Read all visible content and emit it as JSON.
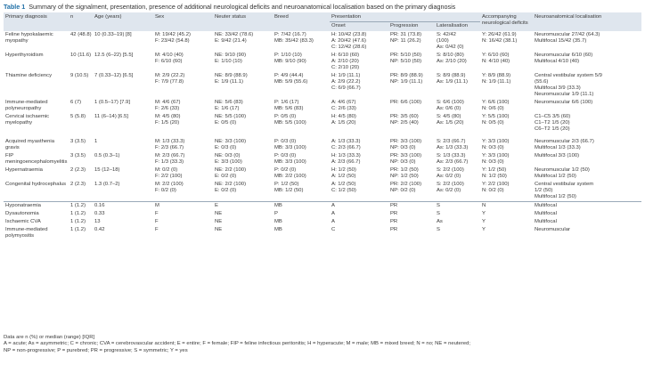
{
  "caption": {
    "label": "Table 1",
    "title": "Summary of the signalment, presentation, presence of additional neurological deficits and neuroanatomical localisation based on the primary diagnosis"
  },
  "headers": [
    "Primary diagnosis",
    "n",
    "Age (years)",
    "Sex",
    "Neuter status",
    "Breed",
    "Presentation",
    "Accompanying neurological deficits",
    "Neuroanatomical localisation"
  ],
  "subheaders": [
    "Onset",
    "Progression",
    "Lateralisation"
  ],
  "rows": [
    {
      "cells": [
        [
          "Feline hypokalaemic",
          "myopathy"
        ],
        [
          "42 (48.8)"
        ],
        [
          "10 (0.33–19) [8]"
        ],
        [
          "M: 19/42 (45.2)",
          "F: 23/42 (54.8)"
        ],
        [
          "NE: 33/42 (78.6)",
          "E: 9/42 (21.4)"
        ],
        [
          "P: 7/42 (16.7)",
          "MB: 35/42 (83.3)"
        ],
        [
          "H: 10/42 (23.8)",
          "A: 20/42 (47.6)",
          "C: 12/42 (28.6)"
        ],
        [
          "PR: 31 (73.8)",
          "NP: 11 (26.2)"
        ],
        [
          "S: 42/42",
          "(100)",
          "As: 0/42 (0)"
        ],
        [
          "Y: 26/42 (61.9)",
          "N: 16/42 (38.1)"
        ],
        [
          "Neuromuscular 27/42 (64.3)",
          "Multifocal 15/42 (35.7)"
        ]
      ]
    },
    {
      "cells": [
        [
          "Hyperthyroidism"
        ],
        [
          "10 (11.6)"
        ],
        [
          "12.5 (6–22) [5.5]"
        ],
        [
          "M: 4/10 (40)",
          "F: 6/10 (60)"
        ],
        [
          "NE: 9/10 (90)",
          "E: 1/10 (10)"
        ],
        [
          "P: 1/10 (10)",
          "MB: 9/10 (90)"
        ],
        [
          "H: 6/10 (60)",
          "A: 2/10 (20)",
          "C: 2/10 (20)"
        ],
        [
          "PR: 5/10 (50)",
          "NP: 5/10 (50)"
        ],
        [
          "S: 8/10 (80)",
          "As: 2/10 (20)"
        ],
        [
          "Y: 6/10 (60)",
          "N: 4/10 (40)"
        ],
        [
          "Neuromuscular 6/10 (60)",
          "Multifocal 4/10 (40)"
        ]
      ]
    },
    {
      "cells": [
        [
          "Thiamine deficiency"
        ],
        [
          "9 (10.5)"
        ],
        [
          "7 (0.33–12) [6.5]"
        ],
        [
          "M: 2/9 (22.2)",
          "F: 7/9 (77.8)"
        ],
        [
          "NE: 8/9 (88.9)",
          "E: 1/9 (11.1)"
        ],
        [
          "P: 4/9 (44.4)",
          "MB: 5/9 (55.6)"
        ],
        [
          "H: 1/9 (11.1)",
          "A: 2/9 (22.2)",
          "C: 6/9 (66.7)"
        ],
        [
          "PR: 8/9 (88.9)",
          "NP: 1/9 (11.1)"
        ],
        [
          "S: 8/9 (88.9)",
          "As: 1/9 (11.1)"
        ],
        [
          "Y: 8/9 (88.9)",
          "N: 1/9 (11.1)"
        ],
        [
          "Central vestibular system 5/9",
          "(55.6)",
          "Multifocal 3/9 (33.3)",
          "Neuromuscular 1/9 (11.1)"
        ]
      ]
    },
    {
      "cells": [
        [
          "Immune-mediated",
          "polyneuropathy"
        ],
        [
          "6 (7)"
        ],
        [
          "1 (0.5–17) [7.9]"
        ],
        [
          "M: 4/6 (67)",
          "F: 2/6 (33)"
        ],
        [
          "NE: 5/6 (83)",
          "E: 1/6 (17)"
        ],
        [
          "P: 1/6 (17)",
          "MB: 5/6 (83)"
        ],
        [
          "A: 4/6 (67)",
          "C: 2/6 (33)"
        ],
        [
          "PR: 6/6 (100)"
        ],
        [
          "S: 6/6 (100)",
          "As: 0/6 (0)"
        ],
        [
          "Y: 6/6 (100)",
          "N: 0/6 (0)"
        ],
        [
          "Neuromuscular 6/6 (100)"
        ]
      ]
    },
    {
      "cells": [
        [
          "Cervical ischaemic",
          "myelopathy"
        ],
        [
          "5 (5.8)"
        ],
        [
          "11 (6–14) [6.5]"
        ],
        [
          "M: 4/5 (80)",
          "F: 1/5 (20)"
        ],
        [
          "NE: 5/5 (100)",
          "E: 0/5 (0)"
        ],
        [
          "P: 0/5 (0)",
          "MB: 5/5 (100)"
        ],
        [
          "H: 4/5 (80)",
          "A: 1/5 (20)"
        ],
        [
          "PR: 3/5 (60)",
          "NP: 2/5 (40)"
        ],
        [
          "S: 4/5 (80)",
          "As: 1/5 (20)"
        ],
        [
          "Y: 5/5 (100)",
          "N: 0/5 (0)"
        ],
        [
          "C1–C5 3/5 (60)",
          "C1–T2 1/5 (20)",
          "C6–T2 1/5 (20)"
        ]
      ]
    },
    {
      "cls": "gap",
      "cells": [
        [
          "Acquired myasthenia",
          "gravis"
        ],
        [
          "3 (3.5)"
        ],
        [
          "1"
        ],
        [
          "M: 1/3 (33.3)",
          "F: 2/3 (66.7)"
        ],
        [
          "NE: 3/3 (100)",
          "E: 0/3 (0)"
        ],
        [
          "P: 0/3 (0)",
          "MB: 3/3 (100)"
        ],
        [
          "A: 1/3 (33.3)",
          "C: 2/3 (66.7)"
        ],
        [
          "PR: 3/3 (100)",
          "NP: 0/3 (0)"
        ],
        [
          "S: 2/3 (66.7)",
          "As: 1/3 (33.3)"
        ],
        [
          "Y: 3/3 (100)",
          "N: 0/3 (0)"
        ],
        [
          "Neuromuscular 2/3 (66.7)",
          "Multifocal 1/3 (33.3)"
        ]
      ]
    },
    {
      "cells": [
        [
          "FIP",
          "meningoencephalomyelitis"
        ],
        [
          "3 (3.5)"
        ],
        [
          "0.5 (0.3–1)"
        ],
        [
          "M: 2/3 (66.7)",
          "F: 1/3 (33.3)"
        ],
        [
          "NE: 0/3 (0)",
          "E: 3/3 (100)"
        ],
        [
          "P: 0/3 (0)",
          "MB: 3/3 (100)"
        ],
        [
          "H: 1/3 (33.3)",
          "A: 2/3 (66.7)"
        ],
        [
          "PR: 3/3 (100)",
          "NP: 0/3 (0)"
        ],
        [
          "S: 1/3 (33.3)",
          "As: 2/3 (66.7)"
        ],
        [
          "Y: 3/3 (100)",
          "N: 0/3 (0)"
        ],
        [
          "Multifocal 3/3 (100)"
        ]
      ]
    },
    {
      "cells": [
        [
          "Hypernatraemia"
        ],
        [
          "2 (2.3)"
        ],
        [
          "15 (12–18)"
        ],
        [
          "M: 0/2 (0)",
          "F: 2/2 (100)"
        ],
        [
          "NE: 2/2 (100)",
          "E: 0/2 (0)"
        ],
        [
          "P: 0/2 (0)",
          "MB: 2/2 (100)"
        ],
        [
          "H: 1/2 (50)",
          "A: 1/2 (50)"
        ],
        [
          "PR: 1/2 (50)",
          "NP: 1/2 (50)"
        ],
        [
          "S: 2/2 (100)",
          "As: 0/2 (0)"
        ],
        [
          "Y: 1/2 (50)",
          "N: 1/2 (50)"
        ],
        [
          "Neuromuscular 1/2 (50)",
          "Multifocal 1/2 (50)"
        ]
      ]
    },
    {
      "cells": [
        [
          "Congenital hydrocephalus"
        ],
        [
          "2 (2.3)"
        ],
        [
          "1.3 (0.7–2)"
        ],
        [
          "M: 2/2 (100)",
          "F: 0/2 (0)"
        ],
        [
          "NE: 2/2 (100)",
          "E: 0/2 (0)"
        ],
        [
          "P: 1/2 (50)",
          "MB: 1/2 (50)"
        ],
        [
          "A: 1/2 (50)",
          "C: 1/2 (50)"
        ],
        [
          "PR: 2/2 (100)",
          "NP: 0/2 (0)"
        ],
        [
          "S: 2/2 (100)",
          "As: 0/2 (0)"
        ],
        [
          "Y: 2/2 (100)",
          "N: 0/2 (0)"
        ],
        [
          "Central vestibular system",
          "1/2 (50)",
          "Multifocal 1/2 (50)"
        ]
      ]
    },
    {
      "cls": "sep",
      "cells": [
        [
          "Hyponatraemia"
        ],
        [
          "1 (1.2)"
        ],
        [
          "0.16"
        ],
        [
          "M"
        ],
        [
          "E"
        ],
        [
          "MB"
        ],
        [
          "A"
        ],
        [
          "PR"
        ],
        [
          "S"
        ],
        [
          "N"
        ],
        [
          "Multifocal"
        ]
      ]
    },
    {
      "cells": [
        [
          "Dysautonomia"
        ],
        [
          "1 (1.2)"
        ],
        [
          "0.33"
        ],
        [
          "F"
        ],
        [
          "NE"
        ],
        [
          "P"
        ],
        [
          "A"
        ],
        [
          "PR"
        ],
        [
          "S"
        ],
        [
          "Y"
        ],
        [
          "Multifocal"
        ]
      ]
    },
    {
      "cells": [
        [
          "Ischaemic CVA"
        ],
        [
          "1 (1.2)"
        ],
        [
          "13"
        ],
        [
          "F"
        ],
        [
          "NE"
        ],
        [
          "MB"
        ],
        [
          "A"
        ],
        [
          "PR"
        ],
        [
          "As"
        ],
        [
          "Y"
        ],
        [
          "Multifocal"
        ]
      ]
    },
    {
      "cells": [
        [
          "Immune-mediated",
          "polymyositis"
        ],
        [
          "1 (1.2)"
        ],
        [
          "0.42"
        ],
        [
          "F"
        ],
        [
          "NE"
        ],
        [
          "MB"
        ],
        [
          "C"
        ],
        [
          "PR"
        ],
        [
          "S"
        ],
        [
          "Y"
        ],
        [
          "Neuromuscular"
        ]
      ]
    }
  ],
  "footnote": [
    "Data are n (%) or median (range) [IQR]",
    "A = acute; As = asymmetric; C = chronic; CVA = cerebrovascular accident; E = entire; F = female; FIP = feline infectious peritonitis; H = hyperacute; M = male; MB = mixed breed; N = no; NE = neutered;",
    "NP = non-progressive; P = purebred; PR = progressive; S = symmetric; Y = yes"
  ]
}
